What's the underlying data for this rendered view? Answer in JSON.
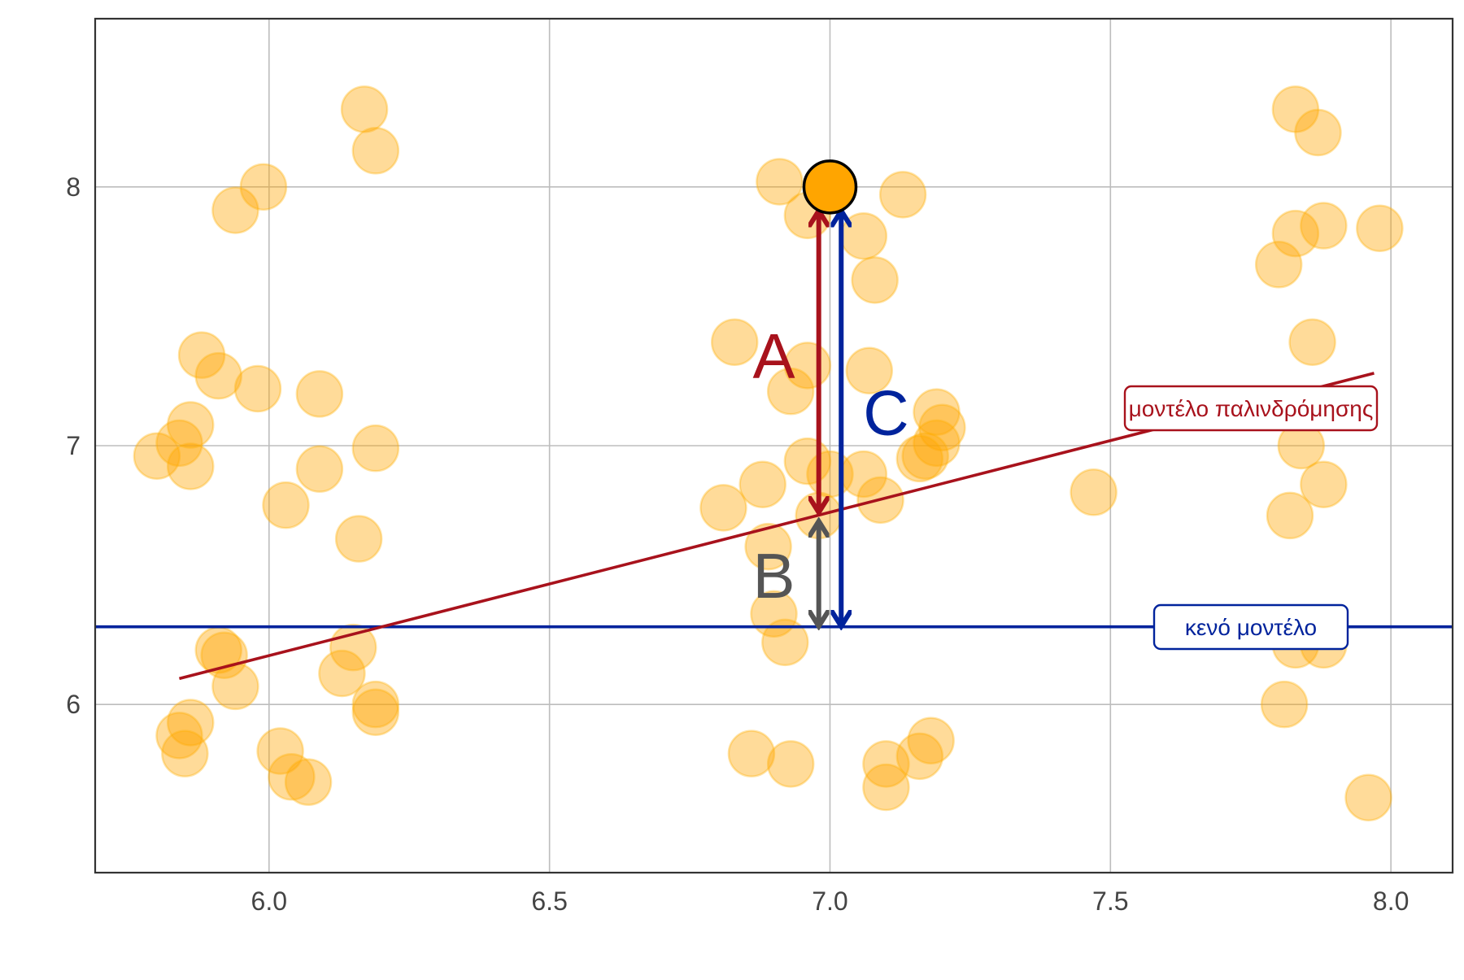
{
  "chart_data": {
    "type": "scatter",
    "title": "",
    "xlabel": "",
    "ylabel": "",
    "xlim": [
      5.69,
      8.11
    ],
    "ylim": [
      5.35,
      8.65
    ],
    "x_ticks": [
      {
        "value": 6.0,
        "label": "6.0"
      },
      {
        "value": 6.5,
        "label": "6.5"
      },
      {
        "value": 7.0,
        "label": "7.0"
      },
      {
        "value": 7.5,
        "label": "7.5"
      },
      {
        "value": 8.0,
        "label": "8.0"
      }
    ],
    "y_ticks": [
      {
        "value": 6,
        "label": "6"
      },
      {
        "value": 7,
        "label": "7"
      },
      {
        "value": 8,
        "label": "8"
      }
    ],
    "grid": true,
    "points": [
      {
        "x": 5.8,
        "y": 6.96
      },
      {
        "x": 5.84,
        "y": 7.01
      },
      {
        "x": 5.86,
        "y": 6.92
      },
      {
        "x": 5.86,
        "y": 7.08
      },
      {
        "x": 5.88,
        "y": 7.35
      },
      {
        "x": 5.91,
        "y": 7.27
      },
      {
        "x": 5.94,
        "y": 7.91
      },
      {
        "x": 5.99,
        "y": 8.0
      },
      {
        "x": 5.98,
        "y": 7.22
      },
      {
        "x": 6.03,
        "y": 6.77
      },
      {
        "x": 6.09,
        "y": 7.2
      },
      {
        "x": 6.09,
        "y": 6.91
      },
      {
        "x": 6.17,
        "y": 8.3
      },
      {
        "x": 6.19,
        "y": 8.14
      },
      {
        "x": 6.16,
        "y": 6.64
      },
      {
        "x": 6.19,
        "y": 6.99
      },
      {
        "x": 5.91,
        "y": 6.21
      },
      {
        "x": 5.92,
        "y": 6.19
      },
      {
        "x": 5.94,
        "y": 6.07
      },
      {
        "x": 6.15,
        "y": 6.22
      },
      {
        "x": 6.13,
        "y": 6.12
      },
      {
        "x": 6.19,
        "y": 6.0
      },
      {
        "x": 6.19,
        "y": 5.97
      },
      {
        "x": 5.86,
        "y": 5.93
      },
      {
        "x": 5.84,
        "y": 5.88
      },
      {
        "x": 5.85,
        "y": 5.81
      },
      {
        "x": 6.02,
        "y": 5.82
      },
      {
        "x": 6.04,
        "y": 5.72
      },
      {
        "x": 6.07,
        "y": 5.7
      },
      {
        "x": 6.91,
        "y": 8.02
      },
      {
        "x": 6.96,
        "y": 7.89
      },
      {
        "x": 7.06,
        "y": 7.81
      },
      {
        "x": 7.13,
        "y": 7.97
      },
      {
        "x": 7.08,
        "y": 7.64
      },
      {
        "x": 6.83,
        "y": 7.4
      },
      {
        "x": 6.96,
        "y": 7.31
      },
      {
        "x": 7.07,
        "y": 7.29
      },
      {
        "x": 6.93,
        "y": 7.21
      },
      {
        "x": 7.19,
        "y": 7.13
      },
      {
        "x": 7.2,
        "y": 7.07
      },
      {
        "x": 7.19,
        "y": 7.01
      },
      {
        "x": 7.17,
        "y": 6.96
      },
      {
        "x": 7.16,
        "y": 6.95
      },
      {
        "x": 6.96,
        "y": 6.94
      },
      {
        "x": 7.06,
        "y": 6.89
      },
      {
        "x": 7.0,
        "y": 6.89
      },
      {
        "x": 6.88,
        "y": 6.85
      },
      {
        "x": 7.09,
        "y": 6.79
      },
      {
        "x": 6.81,
        "y": 6.76
      },
      {
        "x": 6.98,
        "y": 6.73
      },
      {
        "x": 6.89,
        "y": 6.61
      },
      {
        "x": 6.9,
        "y": 6.35
      },
      {
        "x": 6.92,
        "y": 6.24
      },
      {
        "x": 6.86,
        "y": 5.81
      },
      {
        "x": 6.93,
        "y": 5.77
      },
      {
        "x": 7.1,
        "y": 5.77
      },
      {
        "x": 7.1,
        "y": 5.68
      },
      {
        "x": 7.16,
        "y": 5.8
      },
      {
        "x": 7.18,
        "y": 5.86
      },
      {
        "x": 7.47,
        "y": 6.82
      },
      {
        "x": 7.83,
        "y": 8.3
      },
      {
        "x": 7.87,
        "y": 8.21
      },
      {
        "x": 7.83,
        "y": 7.82
      },
      {
        "x": 7.88,
        "y": 7.85
      },
      {
        "x": 7.98,
        "y": 7.84
      },
      {
        "x": 7.8,
        "y": 7.7
      },
      {
        "x": 7.86,
        "y": 7.4
      },
      {
        "x": 7.84,
        "y": 7.0
      },
      {
        "x": 7.88,
        "y": 6.85
      },
      {
        "x": 7.82,
        "y": 6.73
      },
      {
        "x": 7.83,
        "y": 6.23
      },
      {
        "x": 7.88,
        "y": 6.23
      },
      {
        "x": 7.81,
        "y": 6.0
      },
      {
        "x": 7.96,
        "y": 5.64
      }
    ],
    "highlight_point": {
      "x": 7.0,
      "y": 8.0,
      "color": "#ffa500"
    },
    "empty_model": {
      "y": 6.3,
      "label": "κενό μοντέλο",
      "color": "#00239c"
    },
    "regression_model": {
      "x1": 5.84,
      "y1": 6.1,
      "x2": 7.97,
      "y2": 7.28,
      "label": "μοντέλο παλινδρόμησης",
      "color": "#a8121c"
    },
    "arrows": [
      {
        "label": "A",
        "x": 6.98,
        "y_from": 6.75,
        "y_to": 7.9,
        "color": "#a8121c",
        "label_x": 6.9,
        "label_y": 7.35
      },
      {
        "label": "B",
        "x": 6.98,
        "y_from": 6.31,
        "y_to": 6.7,
        "color": "#555555",
        "label_x": 6.9,
        "label_y": 6.5
      },
      {
        "label": "C",
        "x": 7.02,
        "y_from": 6.31,
        "y_to": 7.9,
        "color": "#00239c",
        "label_x": 7.1,
        "label_y": 7.13
      }
    ]
  }
}
